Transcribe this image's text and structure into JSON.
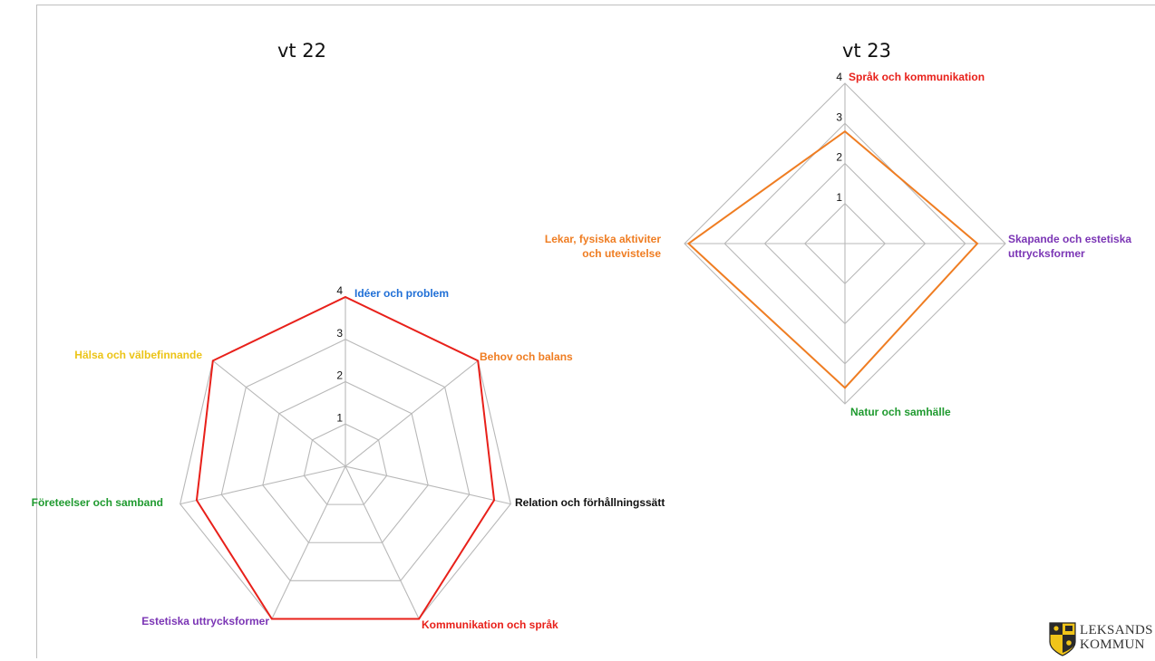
{
  "header": {
    "fragment_text": ""
  },
  "colors": {
    "grid": "#b8b8b8",
    "series_vt22": "#e8201a",
    "series_vt23": "#ef7d22",
    "blue": "#1f6fd6",
    "orange": "#ef7d22",
    "yellow": "#ecc417",
    "green": "#1f9a2f",
    "purple": "#7b35b5",
    "black": "#111111",
    "red": "#e8201a"
  },
  "logo": {
    "line1": "LEKSANDS",
    "line2": "KOMMUN"
  },
  "chart_data": [
    {
      "type": "radar",
      "title": "vt 22",
      "rlim": [
        0,
        4
      ],
      "rticks": [
        "1",
        "2",
        "3",
        "4"
      ],
      "axes": [
        {
          "label": "Idéer och problem",
          "color": "blue"
        },
        {
          "label": "Behov och balans",
          "color": "orange"
        },
        {
          "label": "Relation och förhållningssätt",
          "color": "black"
        },
        {
          "label": "Kommunikation och språk",
          "color": "red"
        },
        {
          "label": "Estetiska uttrycksformer",
          "color": "purple"
        },
        {
          "label": "Företeelser och samband",
          "color": "green"
        },
        {
          "label": "Hälsa och välbefinnande",
          "color": "yellow"
        }
      ],
      "series": [
        {
          "values": [
            4,
            4,
            3.6,
            4,
            4,
            3.6,
            4
          ]
        }
      ]
    },
    {
      "type": "radar",
      "title": "vt 23",
      "rlim": [
        0,
        4
      ],
      "rticks": [
        "1",
        "2",
        "3",
        "4"
      ],
      "axes": [
        {
          "label": "Språk och kommunikation",
          "color": "red"
        },
        {
          "label": "Skapande och estetiska uttrycksformer",
          "color": "purple"
        },
        {
          "label": "Natur och samhälle",
          "color": "green"
        },
        {
          "label": "Lekar, fysiska aktiviter och utevistelse",
          "color": "orange"
        }
      ],
      "series": [
        {
          "values": [
            2.8,
            3.3,
            3.6,
            3.9
          ]
        }
      ]
    }
  ]
}
